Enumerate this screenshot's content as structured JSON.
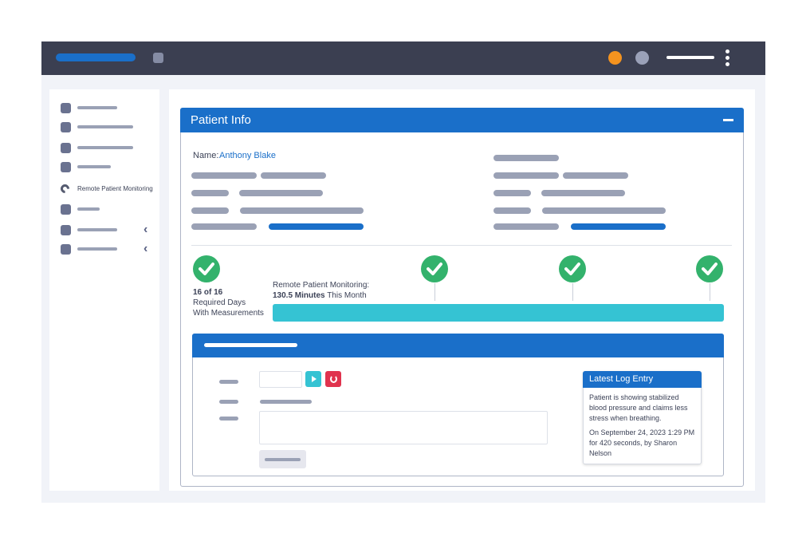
{
  "colors": {
    "topbar": "#3b3f51",
    "primary": "#1a6fc9",
    "success": "#33b26c",
    "progress": "#35c3d3",
    "danger": "#e0334e",
    "notification": "#f4931f"
  },
  "sidebar": {
    "items": [
      {
        "icon": "square-icon"
      },
      {
        "icon": "square-icon"
      },
      {
        "icon": "square-icon"
      },
      {
        "icon": "square-icon"
      },
      {
        "icon": "satellite-dish-icon",
        "label": "Remote Patient Monitoring",
        "active": true
      },
      {
        "icon": "square-icon"
      },
      {
        "icon": "square-icon",
        "expandable": true
      },
      {
        "icon": "square-icon",
        "expandable": true
      }
    ]
  },
  "patient_card": {
    "title": "Patient Info",
    "name_label": "Name:",
    "name_value": "Anthony Blake",
    "required_days": "16 of 16",
    "required_days_line1": "Required Days",
    "required_days_line2": "With Measurements",
    "rpm_label": "Remote Patient Monitoring:",
    "rpm_minutes": "130.5 Minutes",
    "rpm_suffix": "This Month",
    "rpm_progress_percent": 100
  },
  "log_entry": {
    "title": "Latest Log Entry",
    "body": "Patient is showing stabilized blood pressure and claims less stress when breathing.",
    "meta": "On September 24, 2023 1:29 PM for 420 seconds, by Sharon Nelson"
  }
}
